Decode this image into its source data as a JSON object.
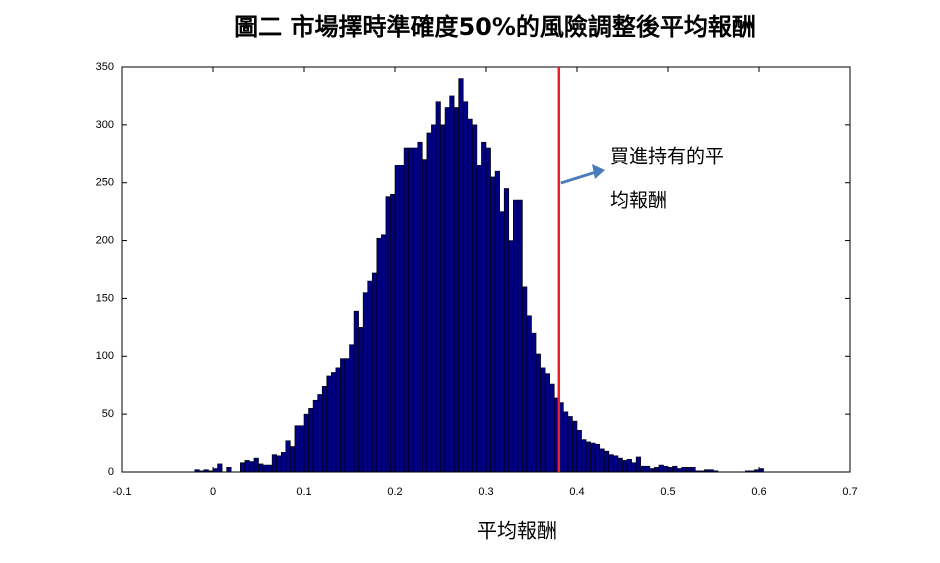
{
  "chart_data": {
    "type": "histogram",
    "title": "圖二 市場擇時準確度50%的風險調整後平均報酬",
    "x_label": "平均報酬",
    "annotation": [
      "買進持有的平",
      "均報酬"
    ],
    "reference_line": {
      "value": 0.38,
      "color": "#e8202a"
    },
    "color": "#000080",
    "xlim": [
      -0.1,
      0.7
    ],
    "xticks": [
      -0.1,
      0,
      0.1,
      0.2,
      0.3,
      0.4,
      0.5,
      0.6,
      0.7
    ],
    "ylim": [
      0,
      350
    ],
    "yticks": [
      0,
      50,
      100,
      150,
      200,
      250,
      300,
      350
    ],
    "bins": [
      -0.02,
      -0.015,
      -0.01,
      -0.005,
      0,
      0.005,
      0.01,
      0.015,
      0.02,
      0.025,
      0.03,
      0.035,
      0.04,
      0.045,
      0.05,
      0.055,
      0.06,
      0.065,
      0.07,
      0.075,
      0.08,
      0.085,
      0.09,
      0.095,
      0.1,
      0.105,
      0.11,
      0.115,
      0.12,
      0.125,
      0.13,
      0.135,
      0.14,
      0.145,
      0.15,
      0.155,
      0.16,
      0.165,
      0.17,
      0.175,
      0.18,
      0.185,
      0.19,
      0.195,
      0.2,
      0.205,
      0.21,
      0.215,
      0.22,
      0.225,
      0.23,
      0.235,
      0.24,
      0.245,
      0.25,
      0.255,
      0.26,
      0.265,
      0.27,
      0.275,
      0.28,
      0.285,
      0.29,
      0.295,
      0.3,
      0.305,
      0.31,
      0.315,
      0.32,
      0.325,
      0.33,
      0.335,
      0.34,
      0.345,
      0.35,
      0.355,
      0.36,
      0.365,
      0.37,
      0.375,
      0.38,
      0.385,
      0.39,
      0.395,
      0.4,
      0.405,
      0.41,
      0.415,
      0.42,
      0.425,
      0.43,
      0.435,
      0.44,
      0.445,
      0.45,
      0.455,
      0.46,
      0.465,
      0.47,
      0.475,
      0.48,
      0.485,
      0.49,
      0.495,
      0.5,
      0.505,
      0.51,
      0.515,
      0.52,
      0.525,
      0.53,
      0.535,
      0.54,
      0.545,
      0.55,
      0.555,
      0.56,
      0.565,
      0.57,
      0.575,
      0.58,
      0.585,
      0.59,
      0.595,
      0.6,
      0.605
    ],
    "values": [
      2,
      1,
      2,
      1,
      3,
      7,
      0,
      4,
      0,
      0,
      8,
      10,
      9,
      12,
      7,
      6,
      6,
      15,
      14,
      17,
      27,
      22,
      40,
      40,
      50,
      55,
      62,
      67,
      74,
      83,
      86,
      90,
      98,
      98,
      110,
      139,
      125,
      155,
      165,
      172,
      202,
      205,
      238,
      240,
      265,
      265,
      280,
      280,
      280,
      285,
      270,
      293,
      300,
      320,
      300,
      315,
      325,
      315,
      340,
      320,
      305,
      300,
      265,
      285,
      280,
      255,
      260,
      225,
      245,
      200,
      235,
      235,
      160,
      135,
      120,
      102,
      90,
      85,
      76,
      64,
      60,
      52,
      48,
      44,
      36,
      28,
      26,
      25,
      24,
      20,
      18,
      15,
      14,
      12,
      10,
      11,
      8,
      13,
      5,
      5,
      3,
      4,
      6,
      5,
      4,
      5,
      3,
      4,
      4,
      4,
      1,
      1,
      2,
      2,
      1,
      0,
      0,
      0,
      0,
      0,
      0,
      1,
      1,
      2,
      3
    ]
  }
}
